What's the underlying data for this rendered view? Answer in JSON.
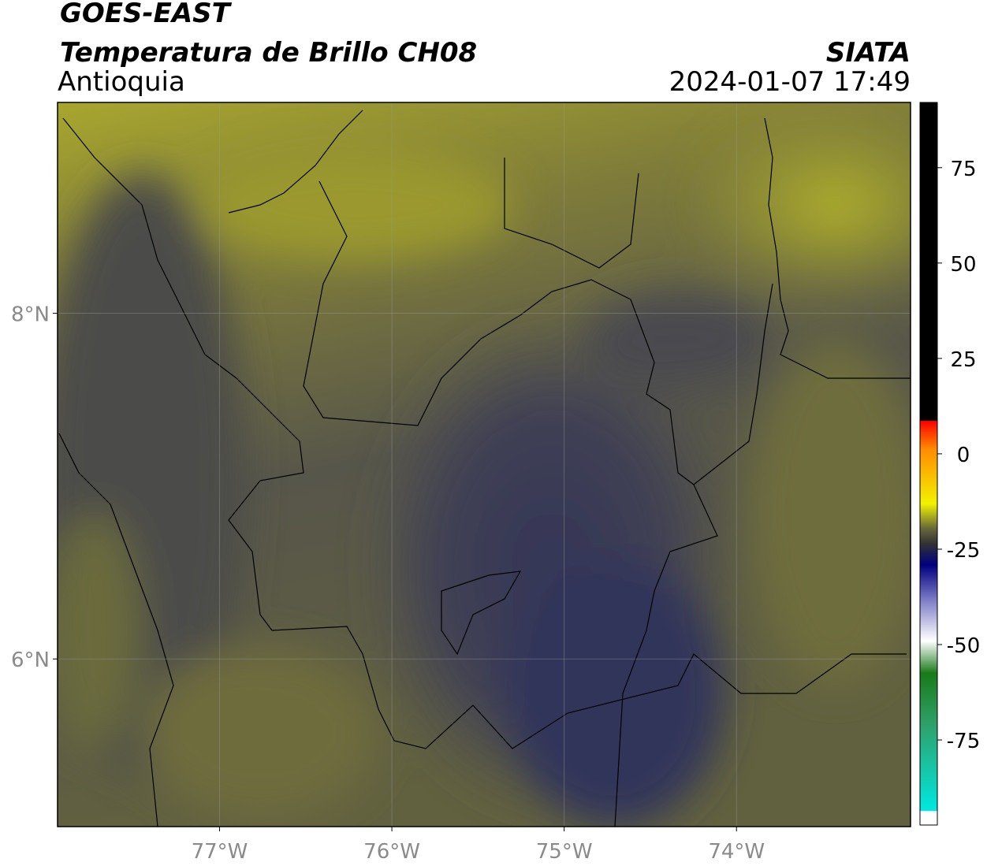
{
  "header": {
    "title": "GOES-EAST",
    "subtitle": "Temperatura de Brillo CH08",
    "region": "Antioquia",
    "source": "SIATA",
    "datetime": "2024-01-07 17:49"
  },
  "map": {
    "xlim": [
      -77.94,
      -72.99
    ],
    "ylim": [
      5.03,
      9.22
    ],
    "xticks": [
      {
        "value": -77,
        "label": "77°W"
      },
      {
        "value": -76,
        "label": "76°W"
      },
      {
        "value": -75,
        "label": "75°W"
      },
      {
        "value": -74,
        "label": "74°W"
      }
    ],
    "yticks": [
      {
        "value": 6,
        "label": "6°N"
      },
      {
        "value": 8,
        "label": "8°N"
      }
    ],
    "grid": true
  },
  "colorbar": {
    "lim": [
      -97.3,
      92.1
    ],
    "ticks": [
      75,
      50,
      25,
      0,
      -25,
      -50,
      -75
    ]
  }
}
